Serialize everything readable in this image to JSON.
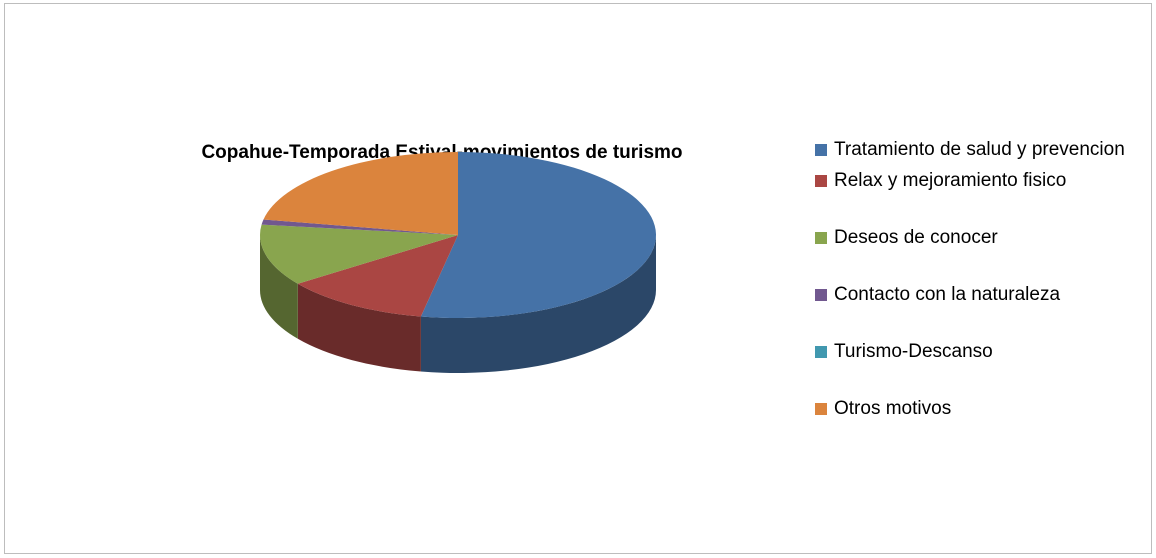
{
  "chart_data": {
    "type": "pie3d",
    "title": "Copahue-Temporada Estival-movimientos de turismo",
    "categories": [
      "Tratamiento de salud y prevencion",
      "Relax y mejoramiento fisico",
      "Deseos de conocer",
      "Contacto con la naturaleza",
      "Turismo-Descanso",
      "Otros motivos"
    ],
    "values": [
      53,
      12,
      12,
      1,
      0,
      22
    ],
    "colors": [
      "#4572a7",
      "#aa4643",
      "#89a54e",
      "#71588f",
      "#4198af",
      "#db843d"
    ],
    "legend": "right"
  }
}
